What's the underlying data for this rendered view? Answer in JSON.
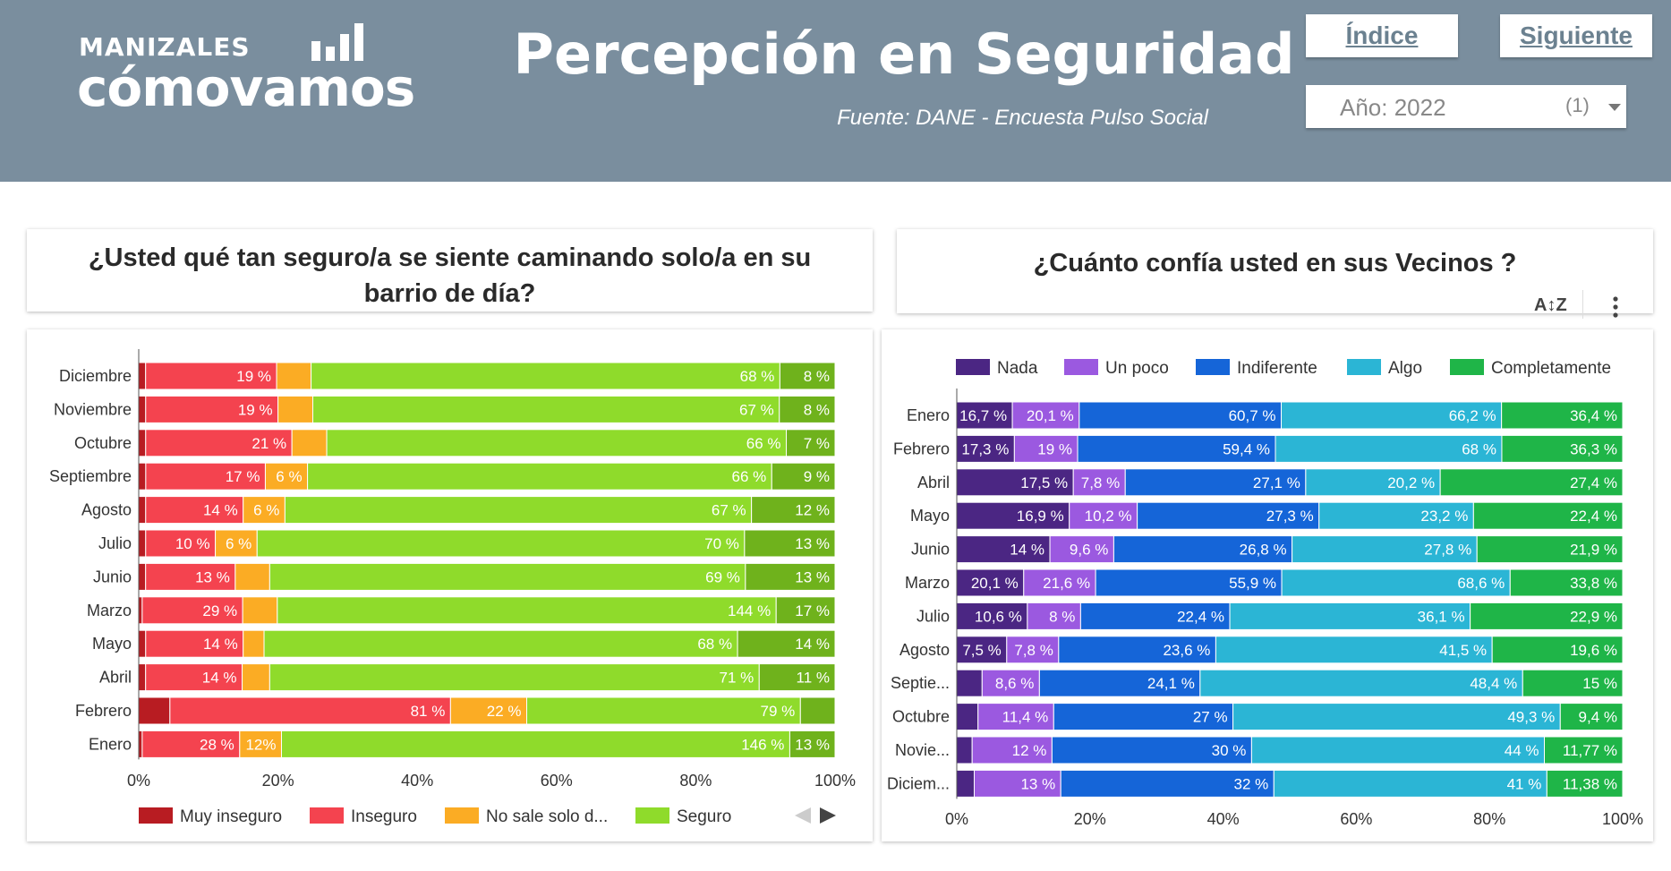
{
  "header": {
    "logo_top": "MANIZALES",
    "logo_bottom": "cómovamos",
    "title": "Percepción en Seguridad",
    "source": "Fuente: DANE - Encuesta Pulso Social",
    "index_label": "Índice",
    "next_label": "Siguiente",
    "year_label": "Año: 2022",
    "year_count": "(1)"
  },
  "colors": {
    "header_bg": "#7a8e9e",
    "muy_inseguro": "#b81c22",
    "inseguro": "#f4434f",
    "no_sale": "#fbac24",
    "seguro": "#8fdb2b",
    "seguro_dark": "#6fb21c",
    "nada": "#4b2683",
    "un_poco": "#9b59e0",
    "indiferente": "#1565d8",
    "algo": "#2bb5d5",
    "completamente": "#1fb548"
  },
  "chart_data": [
    {
      "type": "bar",
      "orientation": "horizontal",
      "stacked": "percent",
      "title": "¿Usted qué tan seguro/a se siente caminando solo/a en su barrio de día?",
      "categories": [
        "Diciembre",
        "Noviembre",
        "Octubre",
        "Septiembre",
        "Agosto",
        "Julio",
        "Junio",
        "Marzo",
        "Mayo",
        "Abril",
        "Febrero",
        "Enero"
      ],
      "series": [
        {
          "name": "Muy inseguro",
          "values": [
            1,
            1,
            1,
            1,
            1,
            1,
            1,
            1,
            1,
            1,
            9,
            1
          ],
          "labels": [
            "1%",
            "1%",
            "1%",
            "1%",
            "1%",
            "1%",
            "1%",
            "1%",
            "1%",
            "1%",
            "9%",
            "1%"
          ]
        },
        {
          "name": "Inseguro",
          "values": [
            19,
            19,
            21,
            17,
            14,
            10,
            13,
            29,
            14,
            14,
            81,
            28
          ],
          "labels": [
            "19 %",
            "19 %",
            "21 %",
            "17 %",
            "14 %",
            "10 %",
            "13 %",
            "29 %",
            "14 %",
            "14 %",
            "81 %",
            "28 %"
          ]
        },
        {
          "name": "No sale solo d...",
          "values": [
            5,
            5,
            5,
            6,
            6,
            6,
            5,
            10,
            3,
            4,
            22,
            12
          ],
          "labels": [
            "5%",
            "5 %",
            "5 %",
            "6 %",
            "6 %",
            "6 %",
            "5%",
            "10%",
            "3%",
            "4%",
            "22 %",
            "12%"
          ]
        },
        {
          "name": "Seguro",
          "values": [
            68,
            67,
            66,
            66,
            67,
            70,
            69,
            144,
            68,
            71,
            79,
            146
          ],
          "labels": [
            "68 %",
            "67 %",
            "66 %",
            "66 %",
            "67 %",
            "70 %",
            "69 %",
            "144 %",
            "68 %",
            "71 %",
            "79 %",
            "146 %"
          ]
        },
        {
          "name": "",
          "values": [
            8,
            8,
            7,
            9,
            12,
            13,
            13,
            17,
            14,
            11,
            10,
            13
          ],
          "labels": [
            "8 %",
            "8 %",
            "7 %",
            "9 %",
            "12 %",
            "13 %",
            "13 %",
            "17 %",
            "14 %",
            "11 %",
            "10",
            "13 %"
          ]
        }
      ],
      "xticks": [
        "0%",
        "20%",
        "40%",
        "60%",
        "80%",
        "100%"
      ],
      "xlim": [
        0,
        100
      ],
      "legend": [
        "Muy inseguro",
        "Inseguro",
        "No sale solo d...",
        "Seguro"
      ],
      "legend_position": "bottom",
      "grid": false
    },
    {
      "type": "bar",
      "orientation": "horizontal",
      "stacked": "percent",
      "title": "¿Cuánto confía usted en sus Vecinos ?",
      "categories": [
        "Enero",
        "Febrero",
        "Abril",
        "Mayo",
        "Junio",
        "Marzo",
        "Julio",
        "Agosto",
        "Septie...",
        "Octubre",
        "Novie...",
        "Diciem..."
      ],
      "series": [
        {
          "name": "Nada",
          "values": [
            16.7,
            17.3,
            17.5,
            16.9,
            14,
            20.1,
            10.6,
            7.5,
            3.8,
            3.2,
            2.31,
            2.62
          ],
          "labels": [
            "16,7 %",
            "17,3 %",
            "17,5 %",
            "16,9 %",
            "14 %",
            "20,1 %",
            "10,6 %",
            "7,5 %",
            "",
            "",
            "2,31",
            "2,62"
          ]
        },
        {
          "name": "Un poco",
          "values": [
            20.1,
            19,
            7.8,
            10.2,
            9.6,
            21.6,
            8,
            7.8,
            8.6,
            11.4,
            12,
            13
          ],
          "labels": [
            "20,1 %",
            "19 %",
            "7,8 %",
            "10,2 %",
            "9,6 %",
            "21,6 %",
            "8 %",
            "7,8 %",
            "8,6 %",
            "11,4 %",
            "12 %",
            "13 %"
          ]
        },
        {
          "name": "Indiferente",
          "values": [
            60.7,
            59.4,
            27.1,
            27.3,
            26.8,
            55.9,
            22.4,
            23.6,
            24.1,
            27,
            30,
            32
          ],
          "labels": [
            "60,7 %",
            "59,4 %",
            "27,1 %",
            "27,3 %",
            "26,8 %",
            "55,9 %",
            "22,4 %",
            "23,6 %",
            "24,1 %",
            "27 %",
            "30 %",
            "32 %"
          ]
        },
        {
          "name": "Algo",
          "values": [
            66.2,
            68,
            20.2,
            23.2,
            27.8,
            68.6,
            36.1,
            41.5,
            48.4,
            49.3,
            44,
            41
          ],
          "labels": [
            "66,2 %",
            "68 %",
            "20,2 %",
            "23,2 %",
            "27,8 %",
            "68,6 %",
            "36,1 %",
            "41,5 %",
            "48,4 %",
            "49,3 %",
            "44 %",
            "41 %"
          ]
        },
        {
          "name": "Completamente",
          "values": [
            36.4,
            36.3,
            27.4,
            22.4,
            21.9,
            33.8,
            22.9,
            19.6,
            15,
            9.4,
            11.77,
            11.38
          ],
          "labels": [
            "36,4 %",
            "36,3 %",
            "27,4 %",
            "22,4 %",
            "21,9 %",
            "33,8 %",
            "22,9 %",
            "19,6 %",
            "15 %",
            "9,4 %",
            "11,77 %",
            "11,38 %"
          ]
        }
      ],
      "xticks": [
        "0%",
        "20%",
        "40%",
        "60%",
        "80%",
        "100%"
      ],
      "xlim": [
        0,
        100
      ],
      "legend": [
        "Nada",
        "Un poco",
        "Indiferente",
        "Algo",
        "Completamente"
      ],
      "legend_position": "top",
      "grid": false
    }
  ]
}
